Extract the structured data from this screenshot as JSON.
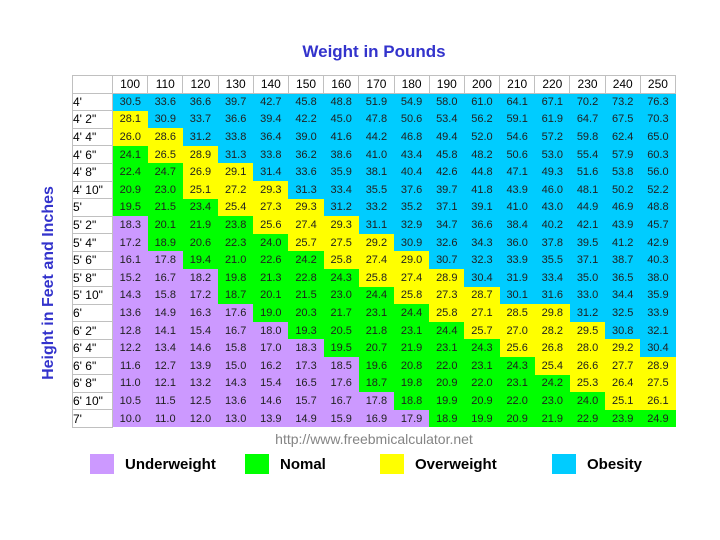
{
  "footer_url": "http://www.freebmicalculator.net",
  "colors": {
    "background": "#FFFFFF",
    "title_text": "#3333CC",
    "axis_label_text": "#3333CC",
    "grid_border": "#C0C0C0",
    "cell_text": "#1F1F1F",
    "url_text": "#848484",
    "legend_text": "#000000"
  },
  "chart_data": {
    "type": "heatmap",
    "title": "Weight in Pounds",
    "xlabel": "Weight in Pounds",
    "ylabel": "Height in Feet and Inches",
    "legend_position": "bottom",
    "categories_legend": [
      {
        "label": "Underweight",
        "color": "#CC99FF",
        "bmi_max": 18.5
      },
      {
        "label": "Nomal",
        "color": "#00FF00",
        "bmi_max": 25
      },
      {
        "label": "Overweight",
        "color": "#FFFF00",
        "bmi_max": 30
      },
      {
        "label": "Obesity",
        "color": "#00CCFF",
        "bmi_max": null
      }
    ],
    "columns": [
      "100",
      "110",
      "120",
      "130",
      "140",
      "150",
      "160",
      "170",
      "180",
      "190",
      "200",
      "210",
      "220",
      "230",
      "240",
      "250"
    ],
    "rows": [
      {
        "label": "4'",
        "values": [
          "30.5",
          "33.6",
          "36.6",
          "39.7",
          "42.7",
          "45.8",
          "48.8",
          "51.9",
          "54.9",
          "58.0",
          "61.0",
          "64.1",
          "67.1",
          "70.2",
          "73.2",
          "76.3"
        ]
      },
      {
        "label": "4' 2\"",
        "values": [
          "28.1",
          "30.9",
          "33.7",
          "36.6",
          "39.4",
          "42.2",
          "45.0",
          "47.8",
          "50.6",
          "53.4",
          "56.2",
          "59.1",
          "61.9",
          "64.7",
          "67.5",
          "70.3"
        ]
      },
      {
        "label": "4' 4\"",
        "values": [
          "26.0",
          "28.6",
          "31.2",
          "33.8",
          "36.4",
          "39.0",
          "41.6",
          "44.2",
          "46.8",
          "49.4",
          "52.0",
          "54.6",
          "57.2",
          "59.8",
          "62.4",
          "65.0"
        ]
      },
      {
        "label": "4' 6\"",
        "values": [
          "24.1",
          "26.5",
          "28.9",
          "31.3",
          "33.8",
          "36.2",
          "38.6",
          "41.0",
          "43.4",
          "45.8",
          "48.2",
          "50.6",
          "53.0",
          "55.4",
          "57.9",
          "60.3"
        ]
      },
      {
        "label": "4' 8\"",
        "values": [
          "22.4",
          "24.7",
          "26.9",
          "29.1",
          "31.4",
          "33.6",
          "35.9",
          "38.1",
          "40.4",
          "42.6",
          "44.8",
          "47.1",
          "49.3",
          "51.6",
          "53.8",
          "56.0"
        ]
      },
      {
        "label": "4' 10\"",
        "values": [
          "20.9",
          "23.0",
          "25.1",
          "27.2",
          "29.3",
          "31.3",
          "33.4",
          "35.5",
          "37.6",
          "39.7",
          "41.8",
          "43.9",
          "46.0",
          "48.1",
          "50.2",
          "52.2"
        ]
      },
      {
        "label": "5'",
        "values": [
          "19.5",
          "21.5",
          "23.4",
          "25.4",
          "27.3",
          "29.3",
          "31.2",
          "33.2",
          "35.2",
          "37.1",
          "39.1",
          "41.0",
          "43.0",
          "44.9",
          "46.9",
          "48.8"
        ]
      },
      {
        "label": "5' 2\"",
        "values": [
          "18.3",
          "20.1",
          "21.9",
          "23.8",
          "25.6",
          "27.4",
          "29.3",
          "31.1",
          "32.9",
          "34.7",
          "36.6",
          "38.4",
          "40.2",
          "42.1",
          "43.9",
          "45.7"
        ]
      },
      {
        "label": "5' 4\"",
        "values": [
          "17.2",
          "18.9",
          "20.6",
          "22.3",
          "24.0",
          "25.7",
          "27.5",
          "29.2",
          "30.9",
          "32.6",
          "34.3",
          "36.0",
          "37.8",
          "39.5",
          "41.2",
          "42.9"
        ]
      },
      {
        "label": "5' 6\"",
        "values": [
          "16.1",
          "17.8",
          "19.4",
          "21.0",
          "22.6",
          "24.2",
          "25.8",
          "27.4",
          "29.0",
          "30.7",
          "32.3",
          "33.9",
          "35.5",
          "37.1",
          "38.7",
          "40.3"
        ]
      },
      {
        "label": "5' 8\"",
        "values": [
          "15.2",
          "16.7",
          "18.2",
          "19.8",
          "21.3",
          "22.8",
          "24.3",
          "25.8",
          "27.4",
          "28.9",
          "30.4",
          "31.9",
          "33.4",
          "35.0",
          "36.5",
          "38.0"
        ]
      },
      {
        "label": "5' 10\"",
        "values": [
          "14.3",
          "15.8",
          "17.2",
          "18.7",
          "20.1",
          "21.5",
          "23.0",
          "24.4",
          "25.8",
          "27.3",
          "28.7",
          "30.1",
          "31.6",
          "33.0",
          "34.4",
          "35.9"
        ]
      },
      {
        "label": "6'",
        "values": [
          "13.6",
          "14.9",
          "16.3",
          "17.6",
          "19.0",
          "20.3",
          "21.7",
          "23.1",
          "24.4",
          "25.8",
          "27.1",
          "28.5",
          "29.8",
          "31.2",
          "32.5",
          "33.9"
        ]
      },
      {
        "label": "6' 2\"",
        "values": [
          "12.8",
          "14.1",
          "15.4",
          "16.7",
          "18.0",
          "19.3",
          "20.5",
          "21.8",
          "23.1",
          "24.4",
          "25.7",
          "27.0",
          "28.2",
          "29.5",
          "30.8",
          "32.1"
        ]
      },
      {
        "label": "6' 4\"",
        "values": [
          "12.2",
          "13.4",
          "14.6",
          "15.8",
          "17.0",
          "18.3",
          "19.5",
          "20.7",
          "21.9",
          "23.1",
          "24.3",
          "25.6",
          "26.8",
          "28.0",
          "29.2",
          "30.4"
        ]
      },
      {
        "label": "6' 6\"",
        "values": [
          "11.6",
          "12.7",
          "13.9",
          "15.0",
          "16.2",
          "17.3",
          "18.5",
          "19.6",
          "20.8",
          "22.0",
          "23.1",
          "24.3",
          "25.4",
          "26.6",
          "27.7",
          "28.9"
        ]
      },
      {
        "label": "6' 8\"",
        "values": [
          "11.0",
          "12.1",
          "13.2",
          "14.3",
          "15.4",
          "16.5",
          "17.6",
          "18.7",
          "19.8",
          "20.9",
          "22.0",
          "23.1",
          "24.2",
          "25.3",
          "26.4",
          "27.5"
        ]
      },
      {
        "label": "6' 10\"",
        "values": [
          "10.5",
          "11.5",
          "12.5",
          "13.6",
          "14.6",
          "15.7",
          "16.7",
          "17.8",
          "18.8",
          "19.9",
          "20.9",
          "22.0",
          "23.0",
          "24.0",
          "25.1",
          "26.1"
        ]
      },
      {
        "label": "7'",
        "values": [
          "10.0",
          "11.0",
          "12.0",
          "13.0",
          "13.9",
          "14.9",
          "15.9",
          "16.9",
          "17.9",
          "18.9",
          "19.9",
          "20.9",
          "21.9",
          "22.9",
          "23.9",
          "24.9"
        ]
      }
    ]
  }
}
